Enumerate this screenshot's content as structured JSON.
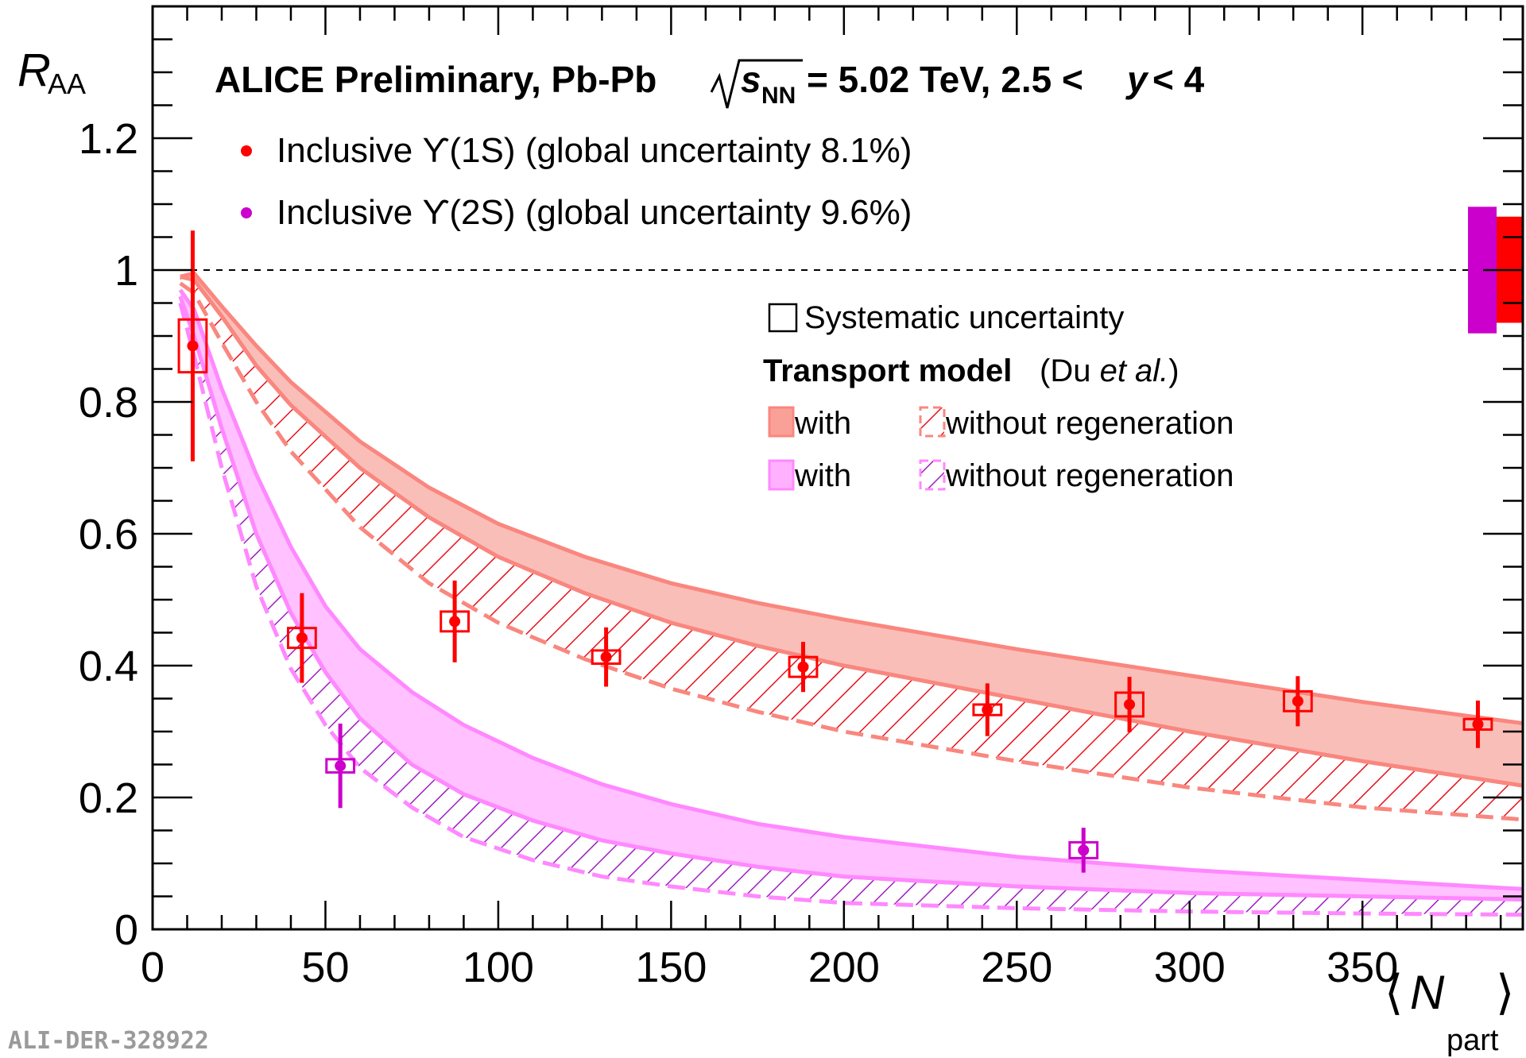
{
  "chart_data": {
    "type": "scatter",
    "title": "ALICE Preliminary, Pb-Pb",
    "energy_label": "= 5.02 TeV, 2.5 <",
    "energy_sqrt": "s",
    "energy_sub": "NN",
    "rapidity_var": "y",
    "rapidity_tail": "< 4",
    "xlabel": "N",
    "xlabel_sub": "part",
    "ylabel": "R",
    "ylabel_sub": "AA",
    "xlim": [
      0,
      400
    ],
    "ylim": [
      0,
      1.4
    ],
    "x_ticks": [
      0,
      50,
      100,
      150,
      200,
      250,
      300,
      350
    ],
    "x_tick_labels": [
      "0",
      "50",
      "100",
      "150",
      "200",
      "250",
      "300",
      "350"
    ],
    "y_ticks": [
      0,
      0.2,
      0.4,
      0.6,
      0.8,
      1,
      1.2
    ],
    "y_tick_labels": [
      "0",
      "0.2",
      "0.4",
      "0.6",
      "0.8",
      "1",
      "1.2"
    ],
    "reference_line": 1,
    "colors": {
      "ups1s": "#ff0000",
      "ups2s": "#cc00cc",
      "band1s": "#f9877f",
      "band2s": "#ff88ff",
      "hatch1s": "#e8101a",
      "hatch2s": "#9d1fbf"
    },
    "series": [
      {
        "name": "Inclusive ϒ(1S) (global uncertainty 8.1%)",
        "color": "#ff0000",
        "global_uncertainty": {
          "low": 0.92,
          "high": 1.081
        },
        "points": [
          {
            "x": 11.6,
            "y": 0.885,
            "stat": 0.175,
            "syst": 0.04,
            "sw": 4
          },
          {
            "x": 43.2,
            "y": 0.442,
            "stat": 0.068,
            "syst": 0.015,
            "sw": 4
          },
          {
            "x": 87.4,
            "y": 0.467,
            "stat": 0.062,
            "syst": 0.015,
            "sw": 4
          },
          {
            "x": 131.2,
            "y": 0.413,
            "stat": 0.045,
            "syst": 0.01,
            "sw": 4
          },
          {
            "x": 188.2,
            "y": 0.398,
            "stat": 0.038,
            "syst": 0.015,
            "sw": 4
          },
          {
            "x": 241.5,
            "y": 0.333,
            "stat": 0.04,
            "syst": 0.008,
            "sw": 4
          },
          {
            "x": 282.6,
            "y": 0.341,
            "stat": 0.042,
            "syst": 0.018,
            "sw": 4
          },
          {
            "x": 331.3,
            "y": 0.346,
            "stat": 0.038,
            "syst": 0.015,
            "sw": 4
          },
          {
            "x": 383.4,
            "y": 0.311,
            "stat": 0.036,
            "syst": 0.008,
            "sw": 4
          }
        ]
      },
      {
        "name": "Inclusive ϒ(2S) (global uncertainty 9.6%)",
        "color": "#cc00cc",
        "global_uncertainty": {
          "low": 0.904,
          "high": 1.096
        },
        "points": [
          {
            "x": 54.3,
            "y": 0.248,
            "stat": 0.064,
            "syst": 0.01,
            "sw": 4
          },
          {
            "x": 269.3,
            "y": 0.12,
            "stat": 0.034,
            "syst": 0.012,
            "sw": 4
          }
        ]
      }
    ],
    "model_bands": [
      {
        "name": "Upsilon(1S) with regeneration",
        "x": [
          8,
          12,
          20,
          30,
          40,
          60,
          80,
          100,
          125,
          150,
          175,
          200,
          250,
          300,
          350,
          400
        ],
        "upper": [
          0.99,
          0.995,
          0.945,
          0.885,
          0.83,
          0.74,
          0.67,
          0.615,
          0.565,
          0.525,
          0.495,
          0.47,
          0.425,
          0.385,
          0.345,
          0.31
        ],
        "lower": [
          0.99,
          0.985,
          0.93,
          0.855,
          0.795,
          0.7,
          0.625,
          0.565,
          0.51,
          0.465,
          0.43,
          0.4,
          0.35,
          0.3,
          0.255,
          0.215
        ]
      },
      {
        "name": "Upsilon(1S) without regeneration",
        "x": [
          8,
          12,
          20,
          30,
          40,
          60,
          80,
          100,
          125,
          150,
          175,
          200,
          250,
          300,
          350,
          400
        ],
        "upper": [
          0.99,
          0.985,
          0.93,
          0.855,
          0.795,
          0.7,
          0.625,
          0.565,
          0.51,
          0.465,
          0.43,
          0.4,
          0.35,
          0.3,
          0.255,
          0.215
        ],
        "lower": [
          0.98,
          0.965,
          0.89,
          0.8,
          0.725,
          0.61,
          0.525,
          0.465,
          0.41,
          0.365,
          0.33,
          0.3,
          0.255,
          0.215,
          0.185,
          0.165
        ]
      },
      {
        "name": "Upsilon(2S) with regeneration",
        "x": [
          8,
          12,
          20,
          30,
          40,
          50,
          60,
          75,
          90,
          110,
          130,
          150,
          175,
          200,
          250,
          300,
          350,
          400
        ],
        "upper": [
          0.97,
          0.94,
          0.82,
          0.69,
          0.58,
          0.49,
          0.425,
          0.36,
          0.31,
          0.26,
          0.22,
          0.19,
          0.16,
          0.14,
          0.11,
          0.09,
          0.075,
          0.06
        ],
        "lower": [
          0.96,
          0.9,
          0.76,
          0.6,
          0.48,
          0.39,
          0.32,
          0.25,
          0.205,
          0.165,
          0.135,
          0.115,
          0.095,
          0.08,
          0.065,
          0.055,
          0.05,
          0.045
        ]
      },
      {
        "name": "Upsilon(2S) without regeneration",
        "x": [
          8,
          12,
          20,
          30,
          40,
          50,
          60,
          75,
          90,
          110,
          130,
          150,
          175,
          200,
          250,
          300,
          350,
          400
        ],
        "upper": [
          0.96,
          0.9,
          0.76,
          0.6,
          0.48,
          0.39,
          0.32,
          0.25,
          0.205,
          0.165,
          0.135,
          0.115,
          0.095,
          0.08,
          0.065,
          0.055,
          0.05,
          0.045
        ],
        "lower": [
          0.95,
          0.87,
          0.7,
          0.52,
          0.395,
          0.31,
          0.245,
          0.185,
          0.14,
          0.105,
          0.08,
          0.065,
          0.05,
          0.04,
          0.032,
          0.027,
          0.024,
          0.022
        ]
      }
    ],
    "legend": {
      "systematic": "Systematic uncertainty",
      "model_title": "Transport model",
      "model_ref_prefix": "(Du ",
      "model_ref_italic": "et al.",
      "model_ref_suffix": ")",
      "with": "with",
      "without": "without regeneration"
    },
    "watermark": "ALI-DER-328922"
  }
}
